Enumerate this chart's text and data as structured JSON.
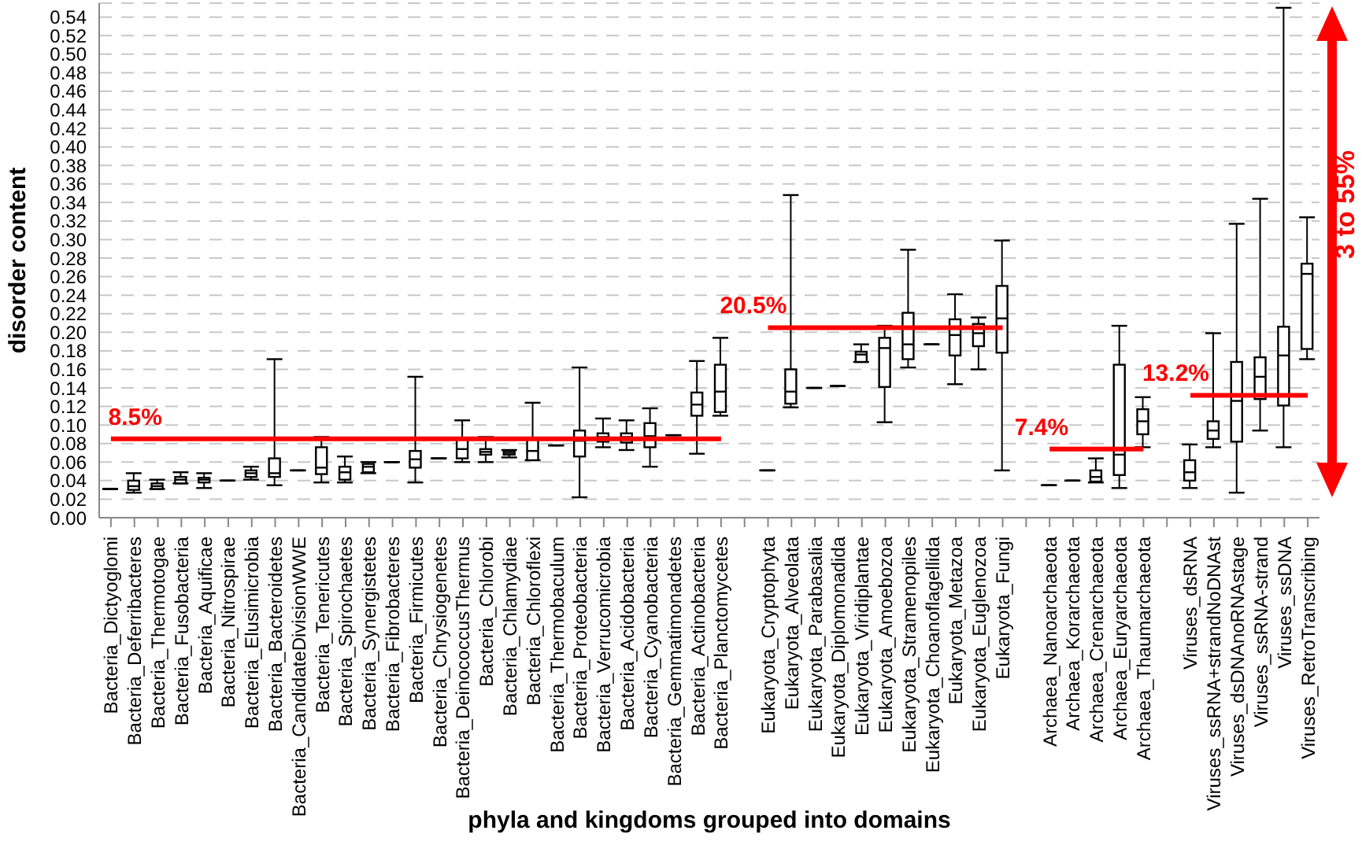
{
  "chart_data": {
    "type": "box",
    "xlabel": "phyla and kingdoms grouped into domains",
    "ylabel": "disorder content",
    "categories": [
      "Bacteria_Dictyoglomi",
      "Bacteria_Deferribacteres",
      "Bacteria_Thermotogae",
      "Bacteria_Fusobacteria",
      "Bacteria_Aquificae",
      "Bacteria_Nitrospirae",
      "Bacteria_Elusimicrobia",
      "Bacteria_Bacteroidetes",
      "Bacteria_CandidateDivisionWWE",
      "Bacteria_Tenericutes",
      "Bacteria_Spirochaetes",
      "Bacteria_Synergistetes",
      "Bacteria_Fibrobacteres",
      "Bacteria_Firmicutes",
      "Bacteria_Chrysiogenetes",
      "Bacteria_DeinococcusThermus",
      "Bacteria_Chlorobi",
      "Bacteria_Chlamydiae",
      "Bacteria_Chloroflexi",
      "Bacteria_Thermobaculum",
      "Bacteria_Proteobacteria",
      "Bacteria_Verrucomicrobia",
      "Bacteria_Acidobacteria",
      "Bacteria_Cyanobacteria",
      "Bacteria_Gemmatimonadetes",
      "Bacteria_Actinobacteria",
      "Bacteria_Planctomycetes",
      null,
      "Eukaryota_Cryptophyta",
      "Eukaryota_Alveolata",
      "Eukaryota_Parabasalia",
      "Eukaryota_Diplomonadida",
      "Eukaryota_Viridiplantae",
      "Eukaryota_Amoebozoa",
      "Eukaryota_Stramenopiles",
      "Eukaryota_Choanoflagellida",
      "Eukaryota_Metazoa",
      "Eukaryota_Euglenozoa",
      "Eukaryota_Fungi",
      null,
      "Archaea_Nanoarchaeota",
      "Archaea_Korarchaeota",
      "Archaea_Crenarchaeota",
      "Archaea_Euryarchaeota",
      "Archaea_Thaumarchaeota",
      null,
      "Viruses_dsRNA",
      "Viruses_ssRNA+strandNoDNAst",
      "Viruses_dsDNAnoRNAstage",
      "Viruses_ssRNA-strand",
      "Viruses_ssDNA",
      "Viruses_RetroTranscribing"
    ],
    "boxes": [
      {
        "low": 0.031,
        "q1": 0.031,
        "median": 0.031,
        "q3": 0.031,
        "high": 0.031
      },
      {
        "low": 0.027,
        "q1": 0.03,
        "median": 0.034,
        "q3": 0.04,
        "high": 0.048
      },
      {
        "low": 0.031,
        "q1": 0.031,
        "median": 0.034,
        "q3": 0.037,
        "high": 0.041
      },
      {
        "low": 0.037,
        "q1": 0.037,
        "median": 0.041,
        "q3": 0.044,
        "high": 0.049
      },
      {
        "low": 0.032,
        "q1": 0.038,
        "median": 0.041,
        "q3": 0.043,
        "high": 0.048
      },
      {
        "low": 0.04,
        "q1": 0.04,
        "median": 0.04,
        "q3": 0.04,
        "high": 0.04
      },
      {
        "low": 0.041,
        "q1": 0.044,
        "median": 0.048,
        "q3": 0.051,
        "high": 0.055
      },
      {
        "low": 0.035,
        "q1": 0.044,
        "median": 0.048,
        "q3": 0.064,
        "high": 0.171
      },
      {
        "low": 0.051,
        "q1": 0.051,
        "median": 0.051,
        "q3": 0.051,
        "high": 0.051
      },
      {
        "low": 0.038,
        "q1": 0.047,
        "median": 0.054,
        "q3": 0.076,
        "high": 0.087
      },
      {
        "low": 0.038,
        "q1": 0.041,
        "median": 0.049,
        "q3": 0.055,
        "high": 0.066
      },
      {
        "low": 0.048,
        "q1": 0.049,
        "median": 0.055,
        "q3": 0.058,
        "high": 0.06
      },
      {
        "low": 0.06,
        "q1": 0.06,
        "median": 0.06,
        "q3": 0.06,
        "high": 0.06
      },
      {
        "low": 0.038,
        "q1": 0.054,
        "median": 0.063,
        "q3": 0.072,
        "high": 0.152
      },
      {
        "low": 0.064,
        "q1": 0.064,
        "median": 0.064,
        "q3": 0.064,
        "high": 0.064
      },
      {
        "low": 0.06,
        "q1": 0.064,
        "median": 0.074,
        "q3": 0.085,
        "high": 0.105
      },
      {
        "low": 0.06,
        "q1": 0.068,
        "median": 0.071,
        "q3": 0.074,
        "high": 0.087
      },
      {
        "low": 0.065,
        "q1": 0.068,
        "median": 0.07,
        "q3": 0.072,
        "high": 0.073
      },
      {
        "low": 0.062,
        "q1": 0.062,
        "median": 0.072,
        "q3": 0.085,
        "high": 0.124
      },
      {
        "low": 0.078,
        "q1": 0.078,
        "median": 0.078,
        "q3": 0.078,
        "high": 0.078
      },
      {
        "low": 0.022,
        "q1": 0.066,
        "median": 0.083,
        "q3": 0.094,
        "high": 0.162
      },
      {
        "low": 0.076,
        "q1": 0.082,
        "median": 0.087,
        "q3": 0.091,
        "high": 0.107
      },
      {
        "low": 0.073,
        "q1": 0.081,
        "median": 0.087,
        "q3": 0.091,
        "high": 0.105
      },
      {
        "low": 0.055,
        "q1": 0.076,
        "median": 0.088,
        "q3": 0.102,
        "high": 0.118
      },
      {
        "low": 0.089,
        "q1": 0.089,
        "median": 0.089,
        "q3": 0.089,
        "high": 0.089
      },
      {
        "low": 0.069,
        "q1": 0.11,
        "median": 0.122,
        "q3": 0.135,
        "high": 0.169
      },
      {
        "low": 0.11,
        "q1": 0.114,
        "median": 0.136,
        "q3": 0.165,
        "high": 0.194
      },
      null,
      {
        "low": 0.051,
        "q1": 0.051,
        "median": 0.051,
        "q3": 0.051,
        "high": 0.051
      },
      {
        "low": 0.119,
        "q1": 0.123,
        "median": 0.136,
        "q3": 0.16,
        "high": 0.348
      },
      {
        "low": 0.14,
        "q1": 0.14,
        "median": 0.14,
        "q3": 0.14,
        "high": 0.14
      },
      {
        "low": 0.142,
        "q1": 0.142,
        "median": 0.142,
        "q3": 0.142,
        "high": 0.142
      },
      {
        "low": 0.168,
        "q1": 0.168,
        "median": 0.176,
        "q3": 0.179,
        "high": 0.187
      },
      {
        "low": 0.103,
        "q1": 0.141,
        "median": 0.183,
        "q3": 0.194,
        "high": 0.207
      },
      {
        "low": 0.162,
        "q1": 0.171,
        "median": 0.187,
        "q3": 0.221,
        "high": 0.289
      },
      {
        "low": 0.187,
        "q1": 0.187,
        "median": 0.187,
        "q3": 0.187,
        "high": 0.187
      },
      {
        "low": 0.144,
        "q1": 0.175,
        "median": 0.197,
        "q3": 0.214,
        "high": 0.241
      },
      {
        "low": 0.16,
        "q1": 0.185,
        "median": 0.199,
        "q3": 0.209,
        "high": 0.216
      },
      {
        "low": 0.051,
        "q1": 0.178,
        "median": 0.215,
        "q3": 0.25,
        "high": 0.299
      },
      null,
      {
        "low": 0.035,
        "q1": 0.035,
        "median": 0.035,
        "q3": 0.035,
        "high": 0.035
      },
      {
        "low": 0.04,
        "q1": 0.04,
        "median": 0.04,
        "q3": 0.04,
        "high": 0.04
      },
      {
        "low": 0.038,
        "q1": 0.039,
        "median": 0.044,
        "q3": 0.051,
        "high": 0.064
      },
      {
        "low": 0.032,
        "q1": 0.046,
        "median": 0.068,
        "q3": 0.165,
        "high": 0.207
      },
      {
        "low": 0.076,
        "q1": 0.09,
        "median": 0.104,
        "q3": 0.117,
        "high": 0.13
      },
      null,
      {
        "low": 0.032,
        "q1": 0.04,
        "median": 0.049,
        "q3": 0.062,
        "high": 0.079
      },
      {
        "low": 0.076,
        "q1": 0.085,
        "median": 0.094,
        "q3": 0.104,
        "high": 0.199
      },
      {
        "low": 0.027,
        "q1": 0.082,
        "median": 0.126,
        "q3": 0.168,
        "high": 0.317
      },
      {
        "low": 0.094,
        "q1": 0.128,
        "median": 0.152,
        "q3": 0.173,
        "high": 0.344
      },
      {
        "low": 0.076,
        "q1": 0.121,
        "median": 0.175,
        "q3": 0.206,
        "high": 0.55
      },
      {
        "low": 0.171,
        "q1": 0.182,
        "median": 0.263,
        "q3": 0.274,
        "high": 0.324
      }
    ],
    "color": "#000000",
    "series": [
      {
        "type": "line",
        "name": "8.5%",
        "color": "#ff0000",
        "x": [
          "Bacteria_Dictyoglomi",
          "Bacteria_Planctomycetes"
        ],
        "values": [
          0.085,
          0.085
        ]
      },
      {
        "type": "line",
        "name": "20.5%",
        "color": "#ff0000",
        "x": [
          "Eukaryota_Cryptophyta",
          "Eukaryota_Fungi"
        ],
        "values": [
          0.205,
          0.205
        ]
      },
      {
        "type": "line",
        "name": "7.4%",
        "color": "#ff0000",
        "x": [
          "Archaea_Nanoarchaeota",
          "Archaea_Thaumarchaeota"
        ],
        "values": [
          0.074,
          0.074
        ]
      },
      {
        "type": "line",
        "name": "13.2%",
        "color": "#ff0000",
        "x": [
          "Viruses_dsRNA",
          "Viruses_RetroTranscribing"
        ],
        "values": [
          0.132,
          0.132
        ]
      }
    ],
    "ylim": [
      0,
      0.555
    ],
    "yticks": [
      {
        "value": 0,
        "label": "0.00"
      },
      {
        "value": 0.02,
        "label": "0.02"
      },
      {
        "value": 0.04,
        "label": "0.04"
      },
      {
        "value": 0.06,
        "label": "0.06"
      },
      {
        "value": 0.08,
        "label": "0.08"
      },
      {
        "value": 0.1,
        "label": "0.10"
      },
      {
        "value": 0.12,
        "label": "0.12"
      },
      {
        "value": 0.14,
        "label": "0.14"
      },
      {
        "value": 0.16,
        "label": "0.16"
      },
      {
        "value": 0.18,
        "label": "0.18"
      },
      {
        "value": 0.2,
        "label": "0.20"
      },
      {
        "value": 0.22,
        "label": "0.22"
      },
      {
        "value": 0.24,
        "label": "0.24"
      },
      {
        "value": 0.26,
        "label": "0.26"
      },
      {
        "value": 0.28,
        "label": "0.28"
      },
      {
        "value": 0.3,
        "label": "0.30"
      },
      {
        "value": 0.32,
        "label": "0.32"
      },
      {
        "value": 0.34,
        "label": "0.34"
      },
      {
        "value": 0.36,
        "label": "0.36"
      },
      {
        "value": 0.38,
        "label": "0.38"
      },
      {
        "value": 0.4,
        "label": "0.40"
      },
      {
        "value": 0.42,
        "label": "0.42"
      },
      {
        "value": 0.44,
        "label": "0.44"
      },
      {
        "value": 0.46,
        "label": "0.46"
      },
      {
        "value": 0.48,
        "label": "0.48"
      },
      {
        "value": 0.5,
        "label": "0.50"
      },
      {
        "value": 0.52,
        "label": "0.52"
      },
      {
        "value": 0.54,
        "label": "0.54"
      }
    ],
    "grid": "y",
    "annotations": [
      "3 to 55%"
    ]
  }
}
